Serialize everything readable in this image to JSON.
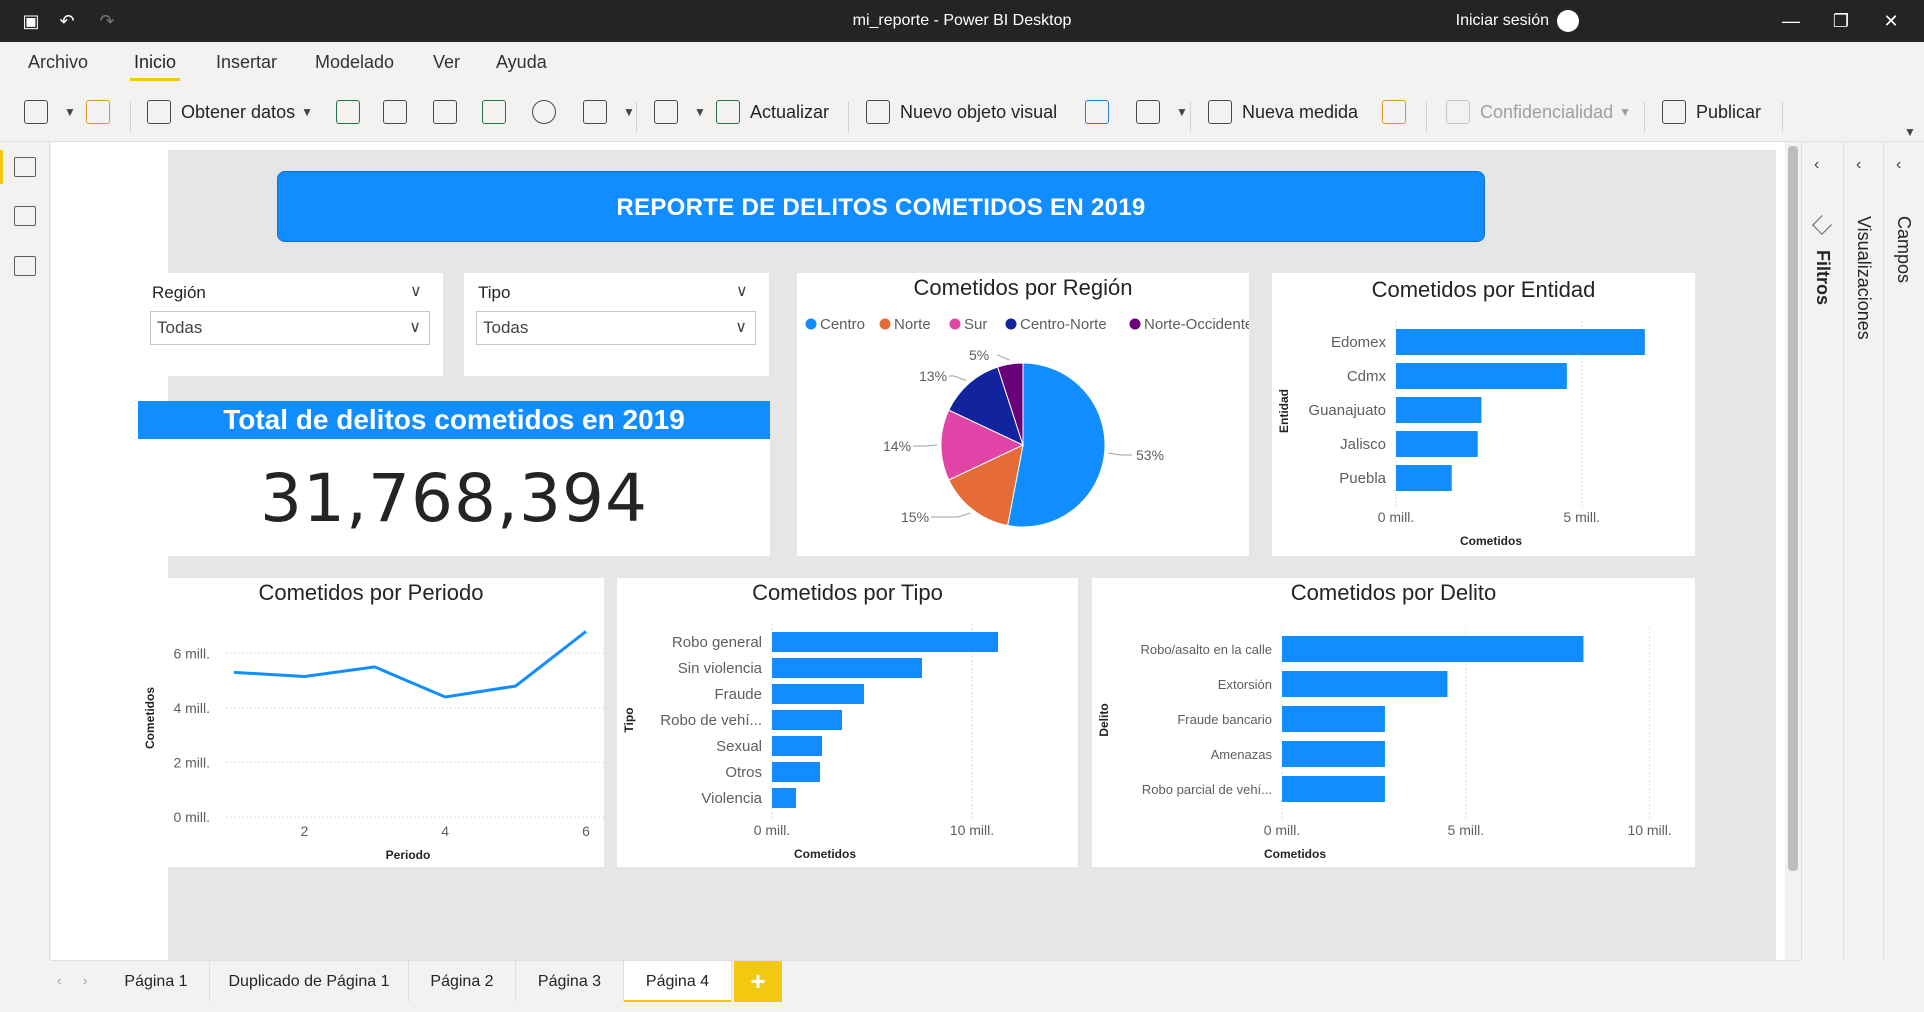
{
  "app": {
    "title": "mi_reporte - Power BI Desktop",
    "signin": "Iniciar sesión"
  },
  "menu": [
    "Archivo",
    "Inicio",
    "Insertar",
    "Modelado",
    "Ver",
    "Ayuda"
  ],
  "ribbon": {
    "get_data": "Obtener datos",
    "refresh": "Actualizar",
    "new_visual": "Nuevo objeto visual",
    "new_measure": "Nueva medida",
    "sensitivity": "Confidencialidad",
    "publish": "Publicar"
  },
  "banner": "REPORTE DE DELITOS COMETIDOS EN 2019",
  "slicers": [
    {
      "title": "Región",
      "value": "Todas"
    },
    {
      "title": "Tipo",
      "value": "Todas"
    }
  ],
  "kpi": {
    "title": "Total de delitos cometidos en 2019",
    "value": "31,768,394"
  },
  "panes": {
    "filters": "Filtros",
    "visualizations": "Visualizaciones",
    "fields": "Campos"
  },
  "pages": [
    "Página 1",
    "Duplicado de Página 1",
    "Página 2",
    "Página 3",
    "Página 4"
  ],
  "active_page": "Página 4",
  "colors": {
    "accent": "#118dff",
    "tab_accent": "#f2c811",
    "titlebar": "#252423"
  },
  "chart_data": [
    {
      "type": "pie",
      "title": "Cometidos por Región",
      "legend": "top",
      "labels": [
        "Centro",
        "Norte",
        "Sur",
        "Centro-Norte",
        "Norte-Occidente"
      ],
      "values": [
        53,
        15,
        14,
        13,
        5
      ],
      "value_labels": [
        "53%",
        "15%",
        "14%",
        "13%",
        "5%"
      ],
      "colors": [
        "#118dff",
        "#e66c37",
        "#e044a7",
        "#12239e",
        "#6b007b"
      ]
    },
    {
      "type": "bar",
      "orientation": "horizontal",
      "title": "Cometidos por Entidad",
      "categories": [
        "Edomex",
        "Cdmx",
        "Guanajuato",
        "Jalisco",
        "Puebla"
      ],
      "values": [
        6.7,
        4.6,
        2.3,
        2.2,
        1.5
      ],
      "xlabel": "Cometidos",
      "ylabel": "Entidad",
      "xticks": [
        "0 mill.",
        "5 mill."
      ],
      "xlim": [
        0,
        7
      ],
      "color": "#118dff"
    },
    {
      "type": "line",
      "title": "Cometidos por Periodo",
      "x": [
        1,
        2,
        3,
        4,
        5,
        6
      ],
      "values": [
        5.3,
        5.15,
        5.5,
        4.4,
        4.8,
        6.8
      ],
      "xlabel": "Periodo",
      "ylabel": "Cometidos",
      "yticks": [
        "0 mill.",
        "2 mill.",
        "4 mill.",
        "6 mill."
      ],
      "xticks": [
        "2",
        "4",
        "6"
      ],
      "ylim": [
        0,
        7
      ],
      "color": "#118dff"
    },
    {
      "type": "bar",
      "orientation": "horizontal",
      "title": "Cometidos por Tipo",
      "categories": [
        "Robo general",
        "Sin violencia",
        "Fraude",
        "Robo de vehí...",
        "Sexual",
        "Otros",
        "Violencia"
      ],
      "values": [
        11.3,
        7.5,
        4.6,
        3.5,
        2.5,
        2.4,
        1.2
      ],
      "xlabel": "Cometidos",
      "ylabel": "Tipo",
      "xticks": [
        "0 mill.",
        "10 mill."
      ],
      "xlim": [
        0,
        12
      ],
      "color": "#118dff"
    },
    {
      "type": "bar",
      "orientation": "horizontal",
      "title": "Cometidos por Delito",
      "categories": [
        "Robo/asalto en la calle",
        "Extorsión",
        "Fraude bancario",
        "Amenazas",
        "Robo parcial de vehí..."
      ],
      "values": [
        8.2,
        4.5,
        2.8,
        2.8,
        2.8
      ],
      "xlabel": "Cometidos",
      "ylabel": "Delito",
      "xticks": [
        "0 mill.",
        "5 mill.",
        "10 mill."
      ],
      "xlim": [
        0,
        10.5
      ],
      "color": "#118dff"
    }
  ]
}
